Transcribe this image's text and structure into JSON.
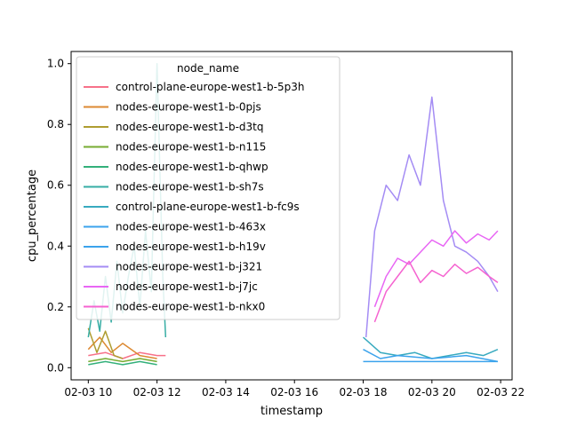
{
  "chart_data": {
    "type": "line",
    "xlabel": "timestamp",
    "ylabel": "cpu_percentage",
    "xlim": [
      "2025-02-03 09:30",
      "2025-02-03 22:20"
    ],
    "ylim": [
      -0.04,
      1.04
    ],
    "x_ticks": [
      {
        "value": "2025-02-03 10:00",
        "label": "02-03 10"
      },
      {
        "value": "2025-02-03 12:00",
        "label": "02-03 12"
      },
      {
        "value": "2025-02-03 14:00",
        "label": "02-03 14"
      },
      {
        "value": "2025-02-03 16:00",
        "label": "02-03 16"
      },
      {
        "value": "2025-02-03 18:00",
        "label": "02-03 18"
      },
      {
        "value": "2025-02-03 20:00",
        "label": "02-03 20"
      },
      {
        "value": "2025-02-03 22:00",
        "label": "02-03 22"
      }
    ],
    "y_ticks": [
      {
        "value": 0.0,
        "label": "0.0"
      },
      {
        "value": 0.2,
        "label": "0.2"
      },
      {
        "value": 0.4,
        "label": "0.4"
      },
      {
        "value": 0.6,
        "label": "0.6"
      },
      {
        "value": 0.8,
        "label": "0.8"
      },
      {
        "value": 1.0,
        "label": "1.0"
      }
    ],
    "grid": false,
    "legend": {
      "title": "node_name",
      "placement": "upper-left"
    },
    "series": [
      {
        "name": "control-plane-europe-west1-b-5p3h",
        "color": "#f77189",
        "segments": [
          {
            "x": [
              "2025-02-03 10:00",
              "2025-02-03 10:30",
              "2025-02-03 11:00",
              "2025-02-03 11:30",
              "2025-02-03 12:00",
              "2025-02-03 12:15"
            ],
            "y": [
              0.04,
              0.05,
              0.03,
              0.05,
              0.04,
              0.04
            ]
          }
        ]
      },
      {
        "name": "nodes-europe-west1-b-0pjs",
        "color": "#dc8932",
        "segments": [
          {
            "x": [
              "2025-02-03 10:00",
              "2025-02-03 10:20",
              "2025-02-03 10:40",
              "2025-02-03 11:00",
              "2025-02-03 11:30",
              "2025-02-03 12:00"
            ],
            "y": [
              0.06,
              0.1,
              0.05,
              0.08,
              0.04,
              0.03
            ]
          }
        ]
      },
      {
        "name": "nodes-europe-west1-b-d3tq",
        "color": "#ae9d31",
        "segments": [
          {
            "x": [
              "2025-02-03 10:00",
              "2025-02-03 10:15",
              "2025-02-03 10:30",
              "2025-02-03 10:45",
              "2025-02-03 11:00"
            ],
            "y": [
              0.13,
              0.05,
              0.12,
              0.04,
              0.03
            ]
          }
        ]
      },
      {
        "name": "nodes-europe-west1-b-n115",
        "color": "#77ab31",
        "segments": [
          {
            "x": [
              "2025-02-03 10:00",
              "2025-02-03 10:30",
              "2025-02-03 11:00",
              "2025-02-03 11:30",
              "2025-02-03 12:00"
            ],
            "y": [
              0.02,
              0.03,
              0.02,
              0.03,
              0.02
            ]
          }
        ]
      },
      {
        "name": "nodes-europe-west1-b-qhwp",
        "color": "#33b07a",
        "segments": [
          {
            "x": [
              "2025-02-03 10:00",
              "2025-02-03 10:30",
              "2025-02-03 11:00",
              "2025-02-03 11:30",
              "2025-02-03 12:00"
            ],
            "y": [
              0.01,
              0.02,
              0.01,
              0.02,
              0.01
            ]
          }
        ]
      },
      {
        "name": "nodes-europe-west1-b-sh7s",
        "color": "#36ada4",
        "segments": [
          {
            "x": [
              "2025-02-03 10:00",
              "2025-02-03 10:10",
              "2025-02-03 10:20",
              "2025-02-03 10:30",
              "2025-02-03 10:40",
              "2025-02-03 10:50",
              "2025-02-03 11:00",
              "2025-02-03 11:10",
              "2025-02-03 11:20",
              "2025-02-03 11:30",
              "2025-02-03 11:40",
              "2025-02-03 11:50",
              "2025-02-03 12:00",
              "2025-02-03 12:10",
              "2025-02-03 12:15"
            ],
            "y": [
              0.1,
              0.22,
              0.12,
              0.3,
              0.15,
              0.35,
              0.18,
              0.3,
              0.4,
              0.2,
              0.45,
              0.25,
              1.0,
              0.3,
              0.1
            ]
          }
        ]
      },
      {
        "name": "control-plane-europe-west1-b-fc9s",
        "color": "#38aabf",
        "segments": [
          {
            "x": [
              "2025-02-03 18:00",
              "2025-02-03 18:30",
              "2025-02-03 19:00",
              "2025-02-03 19:30",
              "2025-02-03 20:00",
              "2025-02-03 20:30",
              "2025-02-03 21:00",
              "2025-02-03 21:30",
              "2025-02-03 21:55"
            ],
            "y": [
              0.1,
              0.05,
              0.04,
              0.05,
              0.03,
              0.04,
              0.05,
              0.04,
              0.06
            ]
          }
        ]
      },
      {
        "name": "nodes-europe-west1-b-463x",
        "color": "#3ba3ec",
        "segments": [
          {
            "x": [
              "2025-02-03 18:00",
              "2025-02-03 18:30",
              "2025-02-03 19:00",
              "2025-02-03 20:00",
              "2025-02-03 21:00",
              "2025-02-03 21:55"
            ],
            "y": [
              0.06,
              0.03,
              0.04,
              0.03,
              0.04,
              0.02
            ]
          }
        ]
      },
      {
        "name": "nodes-europe-west1-b-h19v",
        "color": "#3ba3ec",
        "segments": [
          {
            "x": [
              "2025-02-03 18:00",
              "2025-02-03 19:00",
              "2025-02-03 20:00",
              "2025-02-03 21:00",
              "2025-02-03 21:55"
            ],
            "y": [
              0.02,
              0.02,
              0.02,
              0.02,
              0.02
            ]
          }
        ]
      },
      {
        "name": "nodes-europe-west1-b-j321",
        "color": "#a48cf4",
        "segments": [
          {
            "x": [
              "2025-02-03 18:05",
              "2025-02-03 18:20",
              "2025-02-03 18:40",
              "2025-02-03 19:00",
              "2025-02-03 19:20",
              "2025-02-03 19:40",
              "2025-02-03 20:00",
              "2025-02-03 20:20",
              "2025-02-03 20:40",
              "2025-02-03 21:00",
              "2025-02-03 21:20",
              "2025-02-03 21:40",
              "2025-02-03 21:55"
            ],
            "y": [
              0.1,
              0.45,
              0.6,
              0.55,
              0.7,
              0.6,
              0.89,
              0.55,
              0.4,
              0.38,
              0.35,
              0.3,
              0.25
            ]
          }
        ]
      },
      {
        "name": "nodes-europe-west1-b-j7jc",
        "color": "#e866f4",
        "segments": [
          {
            "x": [
              "2025-02-03 18:20",
              "2025-02-03 18:40",
              "2025-02-03 19:00",
              "2025-02-03 19:20",
              "2025-02-03 19:40",
              "2025-02-03 20:00",
              "2025-02-03 20:20",
              "2025-02-03 20:40",
              "2025-02-03 21:00",
              "2025-02-03 21:20",
              "2025-02-03 21:40",
              "2025-02-03 21:55"
            ],
            "y": [
              0.2,
              0.3,
              0.36,
              0.34,
              0.38,
              0.42,
              0.4,
              0.45,
              0.41,
              0.44,
              0.42,
              0.45
            ]
          }
        ]
      },
      {
        "name": "nodes-europe-west1-b-nkx0",
        "color": "#f563d0",
        "segments": [
          {
            "x": [
              "2025-02-03 18:20",
              "2025-02-03 18:40",
              "2025-02-03 19:00",
              "2025-02-03 19:20",
              "2025-02-03 19:40",
              "2025-02-03 20:00",
              "2025-02-03 20:20",
              "2025-02-03 20:40",
              "2025-02-03 21:00",
              "2025-02-03 21:20",
              "2025-02-03 21:40",
              "2025-02-03 21:55"
            ],
            "y": [
              0.15,
              0.25,
              0.3,
              0.35,
              0.28,
              0.32,
              0.3,
              0.34,
              0.31,
              0.33,
              0.3,
              0.28
            ]
          }
        ]
      }
    ]
  }
}
